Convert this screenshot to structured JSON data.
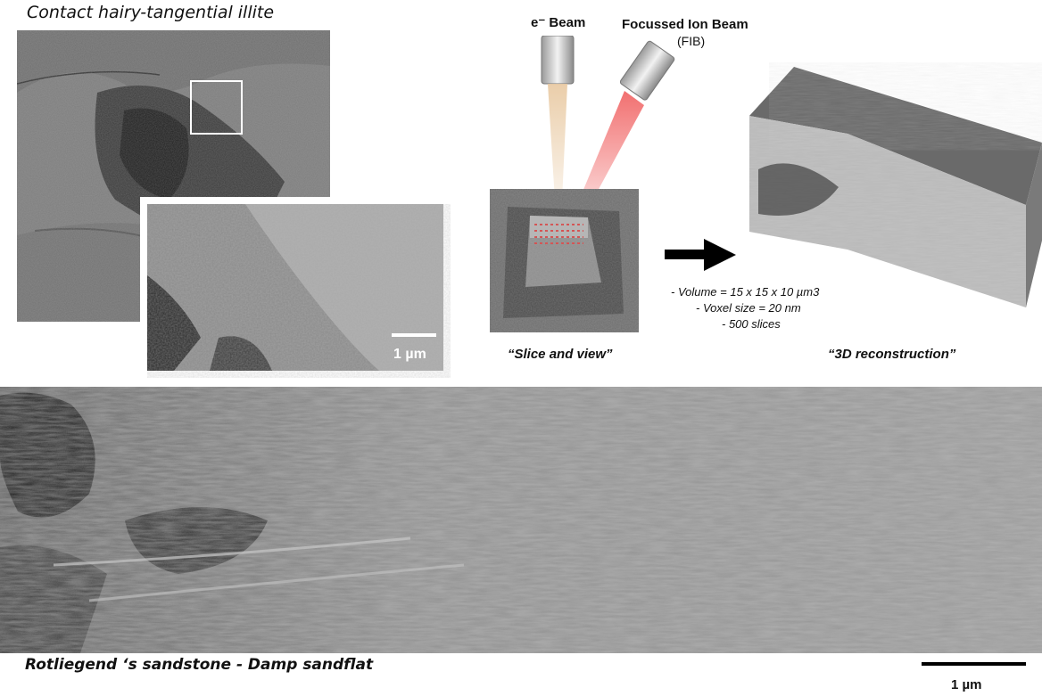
{
  "top_left": {
    "title": "Contact hairy-tangential illite",
    "inset_scale_label": "1 µm"
  },
  "fib_setup": {
    "ebeam_label": "e⁻ Beam",
    "fib_label": "Focussed Ion Beam",
    "fib_sublabel": "(FIB)",
    "slice_caption": "“Slice and view”",
    "reconstruction_caption": "“3D reconstruction”",
    "params": [
      "- Volume  = 15 x 15 x 10 µm3",
      "- Voxel size = 20 nm",
      "- 500 slices"
    ]
  },
  "bottom": {
    "caption": "Rotliegend ‘s sandstone - Damp sandflat",
    "scale_label": "1 µm"
  },
  "colors": {
    "ebeam_glow": "#e8c8a0",
    "fib_glow": "#f06060",
    "sem_gray": "#8a8a8a"
  }
}
